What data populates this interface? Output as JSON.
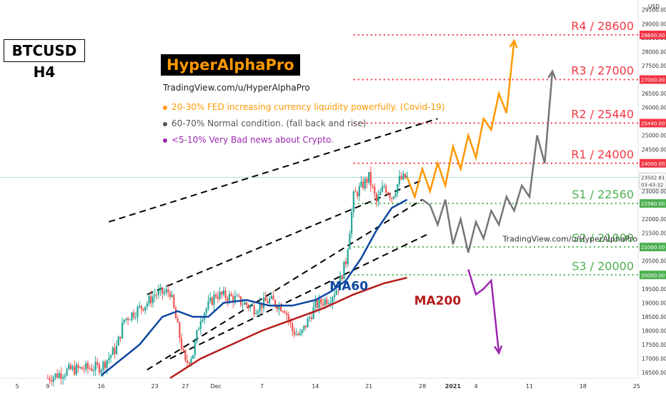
{
  "chart_data": {
    "type": "candlestick",
    "symbol_timeframe": "BTCUSD H4",
    "currency": "USD",
    "brand": "HyperAlphaPro",
    "link": "TradingView.com/u/HyperAlphaPro",
    "watermark": "TradingView.com/u/HyperAlphaPro",
    "ylim": [
      16300,
      29800
    ],
    "y_ticks": [
      16500,
      17000,
      17500,
      18000,
      18500,
      19000,
      19500,
      20000,
      20500,
      21000,
      21500,
      22000,
      22500,
      23000,
      23500,
      24000,
      24500,
      25000,
      25500,
      26000,
      26500,
      27000,
      27500,
      28000,
      28500,
      29000,
      29500
    ],
    "x_ticks": [
      {
        "label": "5",
        "d": 0
      },
      {
        "label": "9",
        "d": 4
      },
      {
        "label": "16",
        "d": 11
      },
      {
        "label": "23",
        "d": 18
      },
      {
        "label": "27",
        "d": 22
      },
      {
        "label": "Dec",
        "d": 26
      },
      {
        "label": "7",
        "d": 32
      },
      {
        "label": "14",
        "d": 39
      },
      {
        "label": "21",
        "d": 46
      },
      {
        "label": "28",
        "d": 53
      },
      {
        "label": "2021",
        "d": 57
      },
      {
        "label": "4",
        "d": 60
      },
      {
        "label": "11",
        "d": 67
      },
      {
        "label": "18",
        "d": 74
      },
      {
        "label": "25",
        "d": 81
      }
    ],
    "last_price": {
      "value": "23502.81",
      "countdown": "03:43:32"
    },
    "levels": [
      {
        "name": "R4 / 28600",
        "price": 28600,
        "color": "#f23645",
        "label": "28600.00"
      },
      {
        "name": "R3 / 27000",
        "price": 27000,
        "color": "#f23645",
        "label": "27000.00"
      },
      {
        "name": "R2 / 25440",
        "price": 25440,
        "color": "#f23645",
        "label": "25440.00"
      },
      {
        "name": "R1 / 24000",
        "price": 24000,
        "color": "#f23645",
        "label": "24000.00"
      },
      {
        "name": "S1 / 22560",
        "price": 22560,
        "color": "#4caf50",
        "label": "22560.00"
      },
      {
        "name": "S2 / 21000",
        "price": 21000,
        "color": "#4caf50",
        "label": "21000.00"
      },
      {
        "name": "S3 / 20000",
        "price": 20000,
        "color": "#4caf50",
        "label": "20000.00"
      }
    ],
    "scenarios": [
      {
        "text": "20-30% FED increasing currency liquidity powerfully. (Covid-19)",
        "color": "#ff9800"
      },
      {
        "text": "60-70% Normal condition. (fall back and rise)",
        "color": "#555555"
      },
      {
        "text": "<5-10% Very Bad news about Crypto.",
        "color": "#9c27b0"
      }
    ],
    "ma_labels": [
      {
        "name": "MA60",
        "color": "#0d47a1"
      },
      {
        "name": "MA200",
        "color": "#b71c1c"
      }
    ],
    "price_path": [
      [
        4,
        16300
      ],
      [
        7,
        16600
      ],
      [
        11,
        16700
      ],
      [
        13,
        17400
      ],
      [
        14,
        18400
      ],
      [
        17,
        19000
      ],
      [
        18,
        19300
      ],
      [
        20,
        19400
      ],
      [
        22,
        16800
      ],
      [
        23,
        17200
      ],
      [
        24,
        18500
      ],
      [
        26,
        19300
      ],
      [
        28,
        19200
      ],
      [
        31,
        18800
      ],
      [
        33,
        19100
      ],
      [
        35,
        18800
      ],
      [
        36,
        18000
      ],
      [
        37,
        17800
      ],
      [
        39,
        18900
      ],
      [
        41,
        19200
      ],
      [
        42,
        19600
      ],
      [
        43,
        20500
      ],
      [
        44,
        22800
      ],
      [
        46,
        23500
      ],
      [
        47,
        22600
      ],
      [
        48,
        23200
      ],
      [
        49,
        22800
      ],
      [
        50,
        23400
      ],
      [
        51,
        23500
      ]
    ],
    "ma60": [
      [
        11,
        16400
      ],
      [
        16,
        17500
      ],
      [
        19,
        18500
      ],
      [
        21,
        18700
      ],
      [
        23,
        18500
      ],
      [
        25,
        18500
      ],
      [
        27,
        19000
      ],
      [
        30,
        19100
      ],
      [
        33,
        18900
      ],
      [
        36,
        18900
      ],
      [
        39,
        19100
      ],
      [
        41,
        19400
      ],
      [
        43,
        19800
      ],
      [
        45,
        20600
      ],
      [
        47,
        21600
      ],
      [
        49,
        22400
      ],
      [
        51,
        22700
      ]
    ],
    "ma200": [
      [
        20,
        16300
      ],
      [
        24,
        17000
      ],
      [
        28,
        17500
      ],
      [
        32,
        18000
      ],
      [
        36,
        18400
      ],
      [
        40,
        18800
      ],
      [
        44,
        19300
      ],
      [
        48,
        19700
      ],
      [
        51,
        19900
      ]
    ],
    "projection_orange": [
      [
        51,
        23500
      ],
      [
        52,
        22800
      ],
      [
        53,
        23800
      ],
      [
        54,
        23000
      ],
      [
        55,
        24000
      ],
      [
        56,
        23200
      ],
      [
        57,
        24600
      ],
      [
        58,
        23800
      ],
      [
        59,
        25000
      ],
      [
        60,
        24200
      ],
      [
        61,
        25600
      ],
      [
        62,
        25200
      ],
      [
        63,
        26500
      ],
      [
        64,
        25800
      ],
      [
        65,
        28400
      ]
    ],
    "projection_gray": [
      [
        53,
        22700
      ],
      [
        54,
        22500
      ],
      [
        55,
        21800
      ],
      [
        56,
        22700
      ],
      [
        57,
        21100
      ],
      [
        58,
        22000
      ],
      [
        59,
        20800
      ],
      [
        60,
        21900
      ],
      [
        61,
        21300
      ],
      [
        62,
        22300
      ],
      [
        63,
        21800
      ],
      [
        64,
        22800
      ],
      [
        65,
        22300
      ],
      [
        66,
        23200
      ],
      [
        67,
        22800
      ],
      [
        68,
        25000
      ],
      [
        69,
        24000
      ],
      [
        70,
        27300
      ]
    ],
    "projection_purple": [
      [
        59,
        20200
      ],
      [
        60,
        19300
      ],
      [
        61,
        19500
      ],
      [
        62,
        19800
      ],
      [
        63,
        17200
      ]
    ],
    "channel_lines": [
      [
        [
          17,
          19300
        ],
        [
          53,
          23400
        ]
      ],
      [
        [
          17,
          16600
        ],
        [
          53,
          22700
        ]
      ],
      [
        [
          12,
          21900
        ],
        [
          55,
          25600
        ]
      ],
      [
        [
          20,
          17000
        ],
        [
          54,
          21500
        ]
      ]
    ]
  }
}
